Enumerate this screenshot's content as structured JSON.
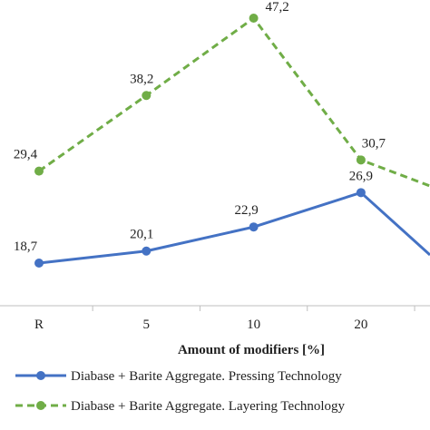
{
  "chart_data": {
    "type": "line",
    "xlabel": "Amount of modifiers [%]",
    "categories": [
      "R",
      "5",
      "10",
      "20"
    ],
    "grid": false,
    "legend_position": "bottom",
    "series": [
      {
        "name": "Diabase + Barite Aggregate. Pressing Technology",
        "values": [
          18.7,
          20.1,
          22.9,
          26.9
        ],
        "labels": [
          "18,7",
          "20,1",
          "22,9",
          "26,9"
        ],
        "color": "#4472c4",
        "style": "solid"
      },
      {
        "name": "Diabase + Barite Aggregate. Layering Technology",
        "values": [
          29.4,
          38.2,
          47.2,
          30.7
        ],
        "labels": [
          "29,4",
          "38,2",
          "47,2",
          "30,7"
        ],
        "color": "#70ad47",
        "style": "dashed"
      }
    ]
  }
}
